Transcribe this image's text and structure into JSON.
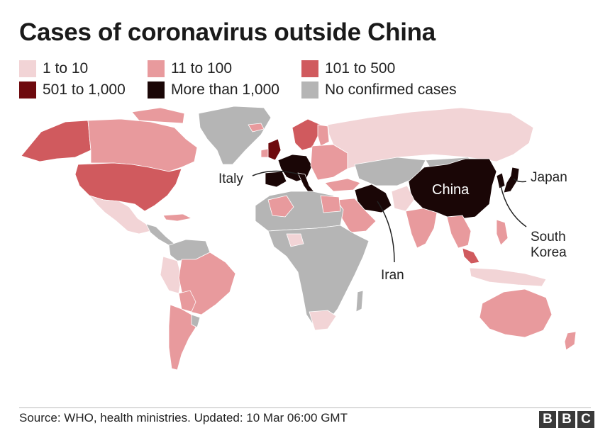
{
  "title": "Cases of coronavirus outside China",
  "legend": [
    {
      "label": "1 to 10",
      "color": "#f2d4d6"
    },
    {
      "label": "11 to 100",
      "color": "#e89a9d"
    },
    {
      "label": "101 to 500",
      "color": "#d05a5e"
    },
    {
      "label": "501 to 1,000",
      "color": "#6e0a0e"
    },
    {
      "label": "More than 1,000",
      "color": "#1a0606"
    },
    {
      "label": "No confirmed cases",
      "color": "#b5b5b5"
    }
  ],
  "map_labels": {
    "italy": "Italy",
    "china": "China",
    "japan": "Japan",
    "south_korea_line1": "South",
    "south_korea_line2": "Korea",
    "iran": "Iran"
  },
  "source": "Source: WHO, health ministries. Updated: 10 Mar 06:00 GMT",
  "logo": [
    "B",
    "B",
    "C"
  ]
}
